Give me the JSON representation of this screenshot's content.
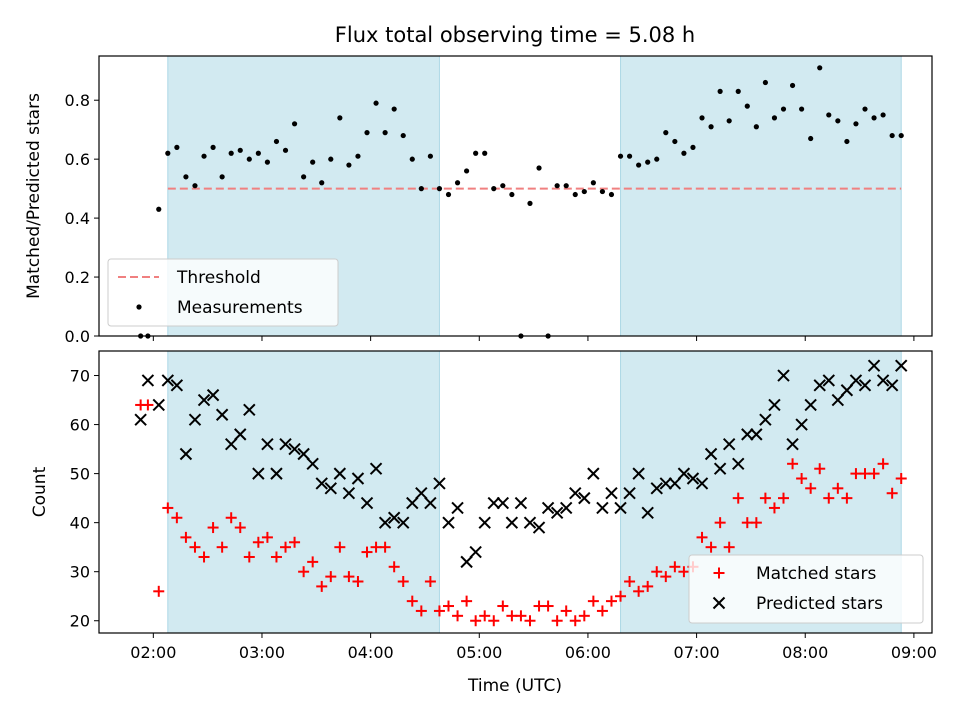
{
  "title": "Flux total observing time = 5.08 h",
  "colors": {
    "threshold": "#f08080",
    "measurement": "#000000",
    "matched": "#ff0000",
    "predicted": "#000000",
    "shade": "#add8e6"
  },
  "chart_data": [
    {
      "type": "scatter",
      "panel": "top",
      "xlabel": "",
      "ylabel": "Matched/Predicted stars",
      "xlim": [
        "01:30",
        "09:10"
      ],
      "ylim": [
        0,
        0.95
      ],
      "yticks": [
        0.0,
        0.2,
        0.4,
        0.6,
        0.8
      ],
      "ytick_labels": [
        "0.0",
        "0.2",
        "0.4",
        "0.6",
        "0.8"
      ],
      "shaded_intervals": [
        [
          "02:08",
          "04:38"
        ],
        [
          "06:18",
          "08:53"
        ]
      ],
      "threshold": {
        "name": "Threshold",
        "value": 0.5,
        "x": [
          "02:08",
          "08:53"
        ]
      },
      "legend": {
        "position": "lower-left",
        "entries": [
          "Threshold",
          "Measurements"
        ]
      },
      "series": [
        {
          "name": "Measurements",
          "x": [
            "01:53",
            "01:57",
            "02:03",
            "02:08",
            "02:13",
            "02:18",
            "02:23",
            "02:28",
            "02:33",
            "02:38",
            "02:43",
            "02:48",
            "02:53",
            "02:58",
            "03:03",
            "03:08",
            "03:13",
            "03:18",
            "03:23",
            "03:28",
            "03:33",
            "03:38",
            "03:43",
            "03:48",
            "03:53",
            "03:58",
            "04:03",
            "04:08",
            "04:13",
            "04:18",
            "04:23",
            "04:28",
            "04:33",
            "04:38",
            "04:43",
            "04:48",
            "04:53",
            "04:58",
            "05:03",
            "05:08",
            "05:13",
            "05:18",
            "05:23",
            "05:28",
            "05:33",
            "05:38",
            "05:43",
            "05:48",
            "05:53",
            "05:58",
            "06:03",
            "06:08",
            "06:13",
            "06:18",
            "06:23",
            "06:28",
            "06:33",
            "06:38",
            "06:43",
            "06:48",
            "06:53",
            "06:58",
            "07:03",
            "07:08",
            "07:13",
            "07:18",
            "07:23",
            "07:28",
            "07:33",
            "07:38",
            "07:43",
            "07:48",
            "07:53",
            "07:58",
            "08:03",
            "08:08",
            "08:13",
            "08:18",
            "08:23",
            "08:28",
            "08:33",
            "08:38",
            "08:43",
            "08:48",
            "08:53"
          ],
          "y": [
            0.0,
            0.0,
            0.43,
            0.62,
            0.64,
            0.54,
            0.51,
            0.61,
            0.64,
            0.54,
            0.62,
            0.63,
            0.6,
            0.62,
            0.59,
            0.66,
            0.63,
            0.72,
            0.54,
            0.59,
            0.52,
            0.6,
            0.74,
            0.58,
            0.61,
            0.69,
            0.79,
            0.69,
            0.77,
            0.68,
            0.6,
            0.5,
            0.61,
            0.5,
            0.48,
            0.52,
            0.56,
            0.62,
            0.62,
            0.5,
            0.51,
            0.48,
            0.0,
            0.45,
            0.57,
            0.0,
            0.51,
            0.51,
            0.48,
            0.49,
            0.52,
            0.49,
            0.48,
            0.61,
            0.61,
            0.58,
            0.59,
            0.6,
            0.69,
            0.66,
            0.62,
            0.64,
            0.74,
            0.71,
            0.83,
            0.73,
            0.83,
            0.78,
            0.71,
            0.86,
            0.74,
            0.77,
            0.85,
            0.77,
            0.67,
            0.91,
            0.75,
            0.73,
            0.66,
            0.72,
            0.77,
            0.74,
            0.75,
            0.68,
            0.68
          ]
        }
      ]
    },
    {
      "type": "scatter",
      "panel": "bottom",
      "xlabel": "Time (UTC)",
      "ylabel": "Count",
      "xlim": [
        "01:30",
        "09:10"
      ],
      "ylim": [
        17.5,
        75
      ],
      "xticks": [
        "02:00",
        "03:00",
        "04:00",
        "05:00",
        "06:00",
        "07:00",
        "08:00",
        "09:00"
      ],
      "yticks": [
        20,
        30,
        40,
        50,
        60,
        70
      ],
      "ytick_labels": [
        "20",
        "30",
        "40",
        "50",
        "60",
        "70"
      ],
      "shaded_intervals": [
        [
          "02:08",
          "04:38"
        ],
        [
          "06:18",
          "08:53"
        ]
      ],
      "legend": {
        "position": "lower-right",
        "entries": [
          "Matched stars",
          "Predicted stars"
        ]
      },
      "series": [
        {
          "name": "Matched stars",
          "marker": "plus",
          "x": [
            "01:53",
            "01:57",
            "02:03",
            "02:08",
            "02:13",
            "02:18",
            "02:23",
            "02:28",
            "02:33",
            "02:38",
            "02:43",
            "02:48",
            "02:53",
            "02:58",
            "03:03",
            "03:08",
            "03:13",
            "03:18",
            "03:23",
            "03:28",
            "03:33",
            "03:38",
            "03:43",
            "03:48",
            "03:53",
            "03:58",
            "04:03",
            "04:08",
            "04:13",
            "04:18",
            "04:23",
            "04:28",
            "04:33",
            "04:38",
            "04:43",
            "04:48",
            "04:53",
            "04:58",
            "05:03",
            "05:08",
            "05:13",
            "05:18",
            "05:23",
            "05:28",
            "05:33",
            "05:38",
            "05:43",
            "05:48",
            "05:53",
            "05:58",
            "06:03",
            "06:08",
            "06:13",
            "06:18",
            "06:23",
            "06:28",
            "06:33",
            "06:38",
            "06:43",
            "06:48",
            "06:53",
            "06:58",
            "07:03",
            "07:08",
            "07:13",
            "07:18",
            "07:23",
            "07:28",
            "07:33",
            "07:38",
            "07:43",
            "07:48",
            "07:53",
            "07:58",
            "08:03",
            "08:08",
            "08:13",
            "08:18",
            "08:23",
            "08:28",
            "08:33",
            "08:38",
            "08:43",
            "08:48",
            "08:53"
          ],
          "y": [
            64,
            64,
            26,
            43,
            41,
            37,
            35,
            33,
            39,
            35,
            41,
            39,
            33,
            36,
            37,
            33,
            35,
            36,
            30,
            32,
            27,
            29,
            35,
            29,
            28,
            34,
            35,
            35,
            31,
            28,
            24,
            22,
            28,
            22,
            23,
            21,
            24,
            20,
            21,
            20,
            23,
            21,
            21,
            20,
            23,
            23,
            20,
            22,
            20,
            21,
            24,
            22,
            24,
            25,
            28,
            26,
            27,
            30,
            29,
            31,
            30,
            31,
            37,
            35,
            40,
            35,
            45,
            40,
            40,
            45,
            43,
            45,
            52,
            49,
            47,
            51,
            45,
            47,
            45,
            50,
            50,
            50,
            52,
            46,
            49
          ]
        },
        {
          "name": "Predicted stars",
          "marker": "x",
          "x": [
            "01:53",
            "01:57",
            "02:03",
            "02:08",
            "02:13",
            "02:18",
            "02:23",
            "02:28",
            "02:33",
            "02:38",
            "02:43",
            "02:48",
            "02:53",
            "02:58",
            "03:03",
            "03:08",
            "03:13",
            "03:18",
            "03:23",
            "03:28",
            "03:33",
            "03:38",
            "03:43",
            "03:48",
            "03:53",
            "03:58",
            "04:03",
            "04:08",
            "04:13",
            "04:18",
            "04:23",
            "04:28",
            "04:33",
            "04:38",
            "04:43",
            "04:48",
            "04:53",
            "04:58",
            "05:03",
            "05:08",
            "05:13",
            "05:18",
            "05:23",
            "05:28",
            "05:33",
            "05:38",
            "05:43",
            "05:48",
            "05:53",
            "05:58",
            "06:03",
            "06:08",
            "06:13",
            "06:18",
            "06:23",
            "06:28",
            "06:33",
            "06:38",
            "06:43",
            "06:48",
            "06:53",
            "06:58",
            "07:03",
            "07:08",
            "07:13",
            "07:18",
            "07:23",
            "07:28",
            "07:33",
            "07:38",
            "07:43",
            "07:48",
            "07:53",
            "07:58",
            "08:03",
            "08:08",
            "08:13",
            "08:18",
            "08:23",
            "08:28",
            "08:33",
            "08:38",
            "08:43",
            "08:48",
            "08:53"
          ],
          "y": [
            61,
            69,
            64,
            69,
            68,
            54,
            61,
            65,
            66,
            62,
            56,
            58,
            63,
            50,
            56,
            50,
            56,
            55,
            54,
            52,
            48,
            47,
            50,
            46,
            49,
            44,
            51,
            40,
            41,
            40,
            44,
            46,
            44,
            48,
            40,
            43,
            32,
            34,
            40,
            44,
            44,
            40,
            44,
            40,
            39,
            43,
            42,
            43,
            46,
            45,
            50,
            43,
            46,
            43,
            46,
            50,
            42,
            47,
            48,
            48,
            50,
            49,
            48,
            54,
            51,
            56,
            52,
            58,
            58,
            61,
            64,
            70,
            56,
            60,
            64,
            68,
            69,
            65,
            67,
            69,
            68,
            72,
            69,
            68,
            72
          ]
        }
      ]
    }
  ]
}
